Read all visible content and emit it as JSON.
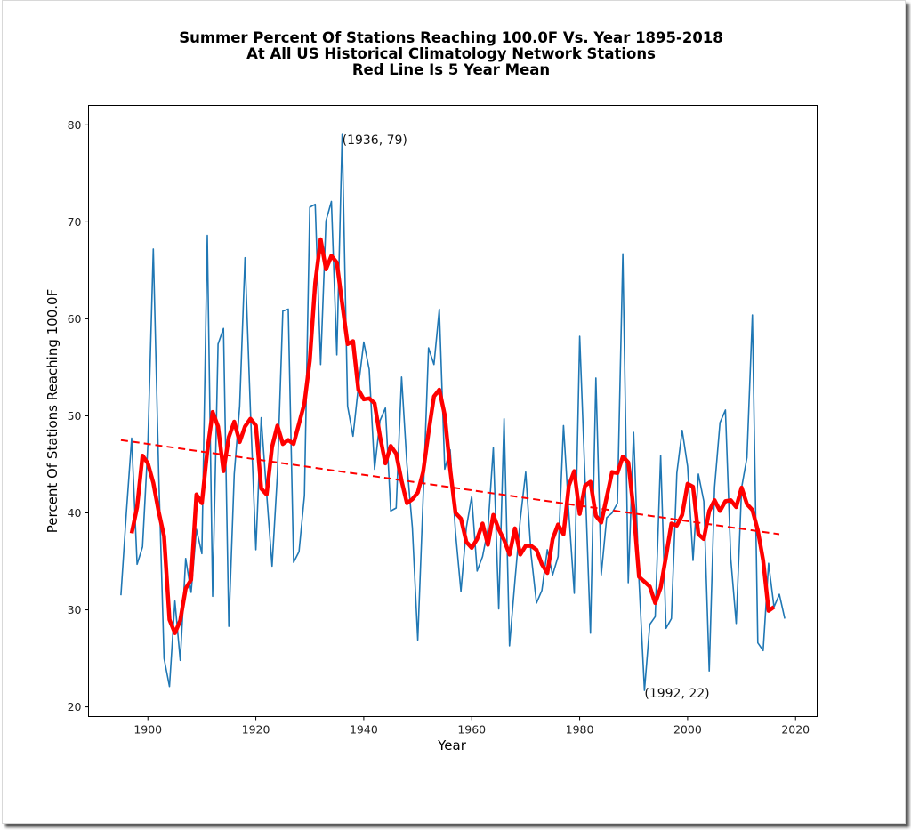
{
  "chart_data": {
    "type": "line",
    "title": [
      "Summer Percent Of Stations Reaching 100.0F Vs. Year 1895-2018",
      "At All US Historical Climatology Network Stations",
      "Red Line Is 5 Year Mean"
    ],
    "xlabel": "Year",
    "ylabel": "Percent Of Stations Reaching 100.0F",
    "xlim": [
      1889,
      2024
    ],
    "ylim": [
      19,
      82
    ],
    "xticks": [
      1900,
      1920,
      1940,
      1960,
      1980,
      2000,
      2020
    ],
    "xtick_labels": [
      "1900",
      "1920",
      "1940",
      "1960",
      "1980",
      "2000",
      "2020"
    ],
    "yticks": [
      20,
      30,
      40,
      50,
      60,
      70,
      80
    ],
    "ytick_labels": [
      "20",
      "30",
      "40",
      "50",
      "60",
      "70",
      "80"
    ],
    "grid": false,
    "colors": {
      "annual": "#1f77b4",
      "mean": "#ff0000",
      "trend": "#ff0000"
    },
    "annotations": [
      {
        "x": 1936,
        "y": 79,
        "text": "(1936, 79)"
      },
      {
        "x": 1992,
        "y": 22,
        "text": "(1992, 22)"
      }
    ],
    "series": [
      {
        "name": "Annual percent",
        "style": "solid-thin",
        "x_start": 1895,
        "values": [
          31.5,
          40,
          47.7,
          34.7,
          36.5,
          47,
          67.2,
          44,
          25,
          22.1,
          30.9,
          24.8,
          35.3,
          31.8,
          38.3,
          35.8,
          68.6,
          31.4,
          57.4,
          59,
          28.3,
          44,
          51,
          66.3,
          50.5,
          36.2,
          49.8,
          42,
          34.5,
          44,
          60.8,
          61,
          34.9,
          36,
          41.8,
          71.5,
          71.8,
          55.3,
          70.1,
          72.1,
          56.3,
          79,
          51,
          47.9,
          53,
          57.6,
          54.8,
          44.5,
          49.5,
          50.8,
          40.2,
          40.5,
          54,
          45,
          38.5,
          26.9,
          41.5,
          57,
          55.3,
          61,
          44.5,
          46.5,
          38,
          31.9,
          38.5,
          41.7,
          34,
          35.5,
          38.3,
          46.7,
          30.1,
          49.7,
          26.3,
          33,
          39.3,
          44.2,
          35.7,
          30.7,
          32,
          36.2,
          33.6,
          35.5,
          49,
          40,
          31.7,
          58.2,
          43.5,
          27.6,
          53.9,
          33.6,
          39.5,
          40,
          41,
          66.7,
          32.8,
          48.3,
          33,
          21.7,
          28.5,
          29.3,
          45.9,
          28.1,
          29.1,
          44.1,
          48.5,
          44.8,
          35.1,
          44,
          41.2,
          23.7,
          42.6,
          49.3,
          50.6,
          35.3,
          28.6,
          42.6,
          45.7,
          60.4,
          26.6,
          25.8,
          34.8,
          30.3,
          31.6,
          29.1
        ]
      },
      {
        "name": "5 Year Mean",
        "style": "solid-thick",
        "x_start": 1897,
        "values": [
          37.9,
          40.6,
          45.9,
          45.1,
          43.1,
          40.1,
          37.6,
          29,
          27.6,
          28.9,
          32.2,
          33.1,
          41.9,
          41,
          46.4,
          50.4,
          48.9,
          44.3,
          47.8,
          49.4,
          47.3,
          48.9,
          49.7,
          49,
          42.5,
          41.9,
          46.8,
          49,
          47.1,
          47.5,
          47.1,
          49.2,
          51.3,
          55.7,
          63.7,
          68.2,
          65.1,
          66.5,
          65.8,
          61.6,
          57.4,
          57.7,
          52.7,
          51.7,
          51.8,
          51.3,
          47.9,
          45.1,
          46.9,
          46.1,
          43.3,
          41,
          41.4,
          42.1,
          44.2,
          48.3,
          52,
          52.7,
          50.1,
          44.5,
          40,
          39.4,
          37,
          36.4,
          37.3,
          38.9,
          36.7,
          39.8,
          38.3,
          37.2,
          35.7,
          38.4,
          35.7,
          36.6,
          36.6,
          36.2,
          34.7,
          33.8,
          37.3,
          38.8,
          37.8,
          42.8,
          44.3,
          39.9,
          42.8,
          43.2,
          39.7,
          39,
          41.6,
          44.2,
          44.1,
          45.8,
          45.2,
          40.3,
          33.4,
          32.9,
          32.4,
          30.7,
          32.3,
          35.5,
          38.9,
          38.7,
          39.8,
          43,
          42.7,
          37.8,
          37.3,
          40.2,
          41.3,
          40.2,
          41.2,
          41.3,
          40.6,
          42.6,
          40.9,
          40.3,
          38.2,
          35.1,
          29.9,
          30.3
        ]
      },
      {
        "name": "Linear trend",
        "style": "dashed",
        "x": [
          1895,
          2017
        ],
        "values": [
          47.5,
          37.8
        ]
      }
    ]
  }
}
